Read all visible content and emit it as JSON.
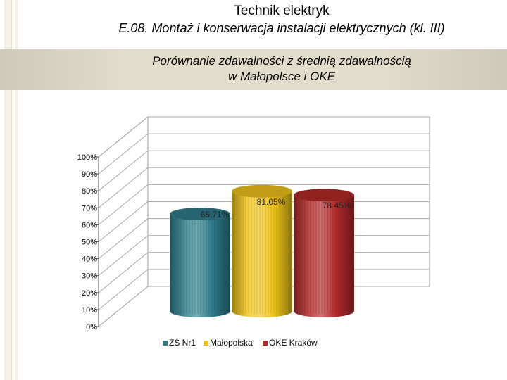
{
  "header": {
    "title": "Technik elektryk",
    "subtitle": "E.08. Montaż i konserwacja instalacji elektrycznych (kl. III)"
  },
  "band": {
    "line1": "Porównanie zdawalności z średnią zdawalnością",
    "line2": "w Małopolsce i OKE"
  },
  "chart_data": {
    "type": "bar",
    "style": "3d-cylinder",
    "categories": [
      ""
    ],
    "series": [
      {
        "name": "ZS Nr1",
        "values": [
          65.71
        ],
        "label": "65.71%",
        "color": "#2e7d8c"
      },
      {
        "name": "Małopolska",
        "values": [
          81.05
        ],
        "label": "81.05%",
        "color": "#f0c419"
      },
      {
        "name": "OKE Kraków",
        "values": [
          78.45
        ],
        "label": "78.45%",
        "color": "#b42a2a"
      }
    ],
    "y_ticks": [
      "0%",
      "10%",
      "20%",
      "30%",
      "40%",
      "50%",
      "60%",
      "70%",
      "80%",
      "90%",
      "100%"
    ],
    "ylim": [
      0,
      100
    ],
    "grid": true,
    "legend": "bottom"
  }
}
